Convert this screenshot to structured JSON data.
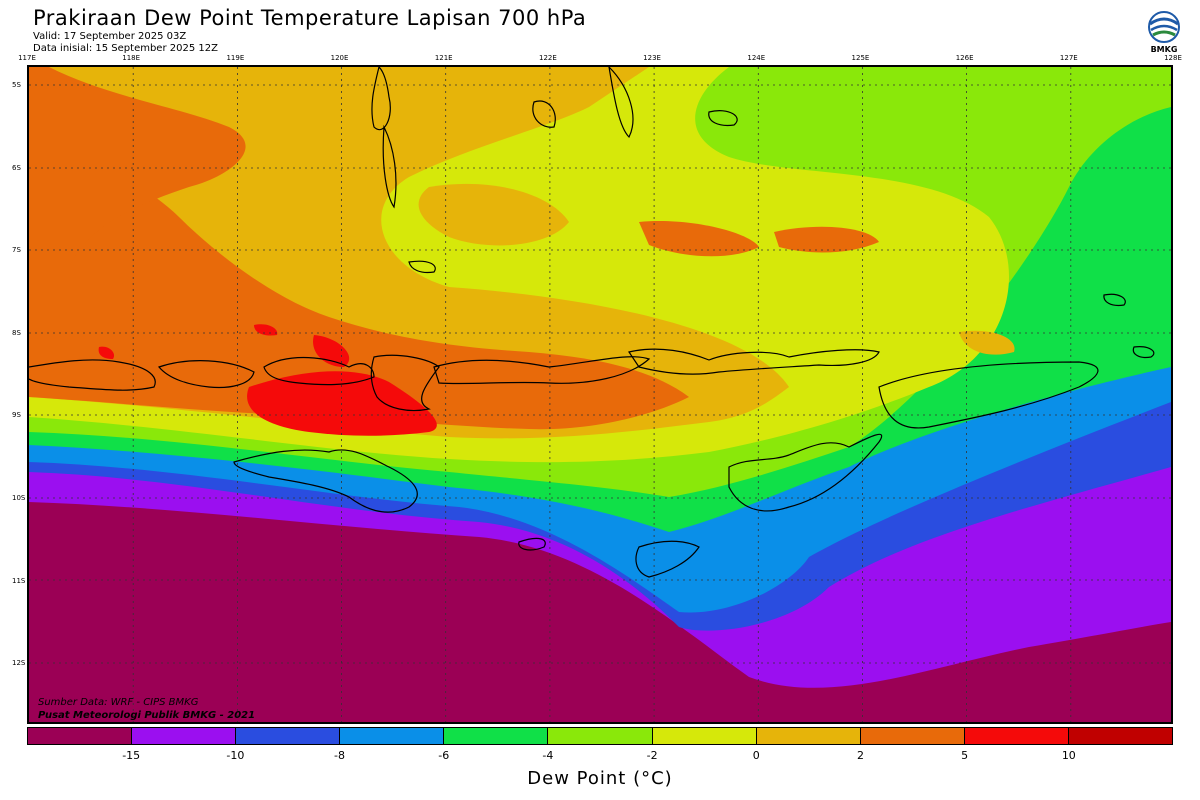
{
  "header": {
    "title": "Prakiraan Dew Point Temperature Lapisan 700 hPa",
    "valid": "Valid: 17 September 2025 03Z",
    "init": "Data inisial: 15 September 2025 12Z"
  },
  "logo": {
    "text": "BMKG",
    "icon": "bmkg-logo-icon"
  },
  "map": {
    "lon_labels": [
      "117E",
      "118E",
      "119E",
      "120E",
      "121E",
      "122E",
      "123E",
      "124E",
      "125E",
      "126E",
      "127E",
      "128E"
    ],
    "lat_labels": [
      "5S",
      "6S",
      "7S",
      "8S",
      "9S",
      "10S",
      "11S",
      "12S"
    ],
    "lon_range": [
      117,
      128
    ],
    "lat_range": [
      -4.8,
      -12.75
    ],
    "grid": "dotted",
    "coastlines": true
  },
  "credits": {
    "source": "Sumber Data: WRF - CIPS BMKG",
    "center": "Pusat Meteorologi Publik BMKG - 2021"
  },
  "colorbar": {
    "title": "Dew Point (°C)",
    "labels": [
      "-15",
      "-10",
      "-8",
      "-6",
      "-4",
      "-2",
      "0",
      "2",
      "5",
      "10"
    ],
    "colors": [
      "#9b0055",
      "#9b0ff0",
      "#2a4de0",
      "#0a8fe8",
      "#10e048",
      "#8ae80a",
      "#d6e80a",
      "#e6b40a",
      "#e86a0a",
      "#f50a0a",
      "#c00000"
    ]
  }
}
